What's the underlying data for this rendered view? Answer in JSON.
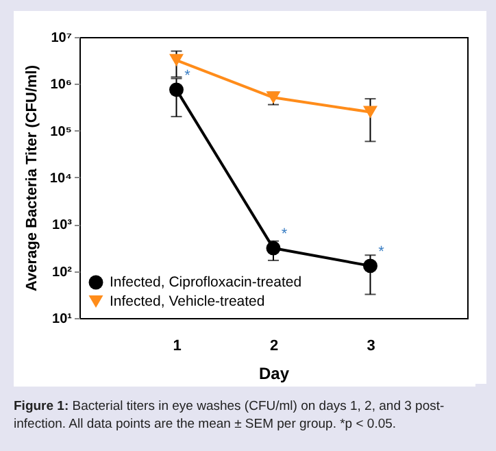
{
  "chart_data": {
    "type": "line",
    "xlabel": "Day",
    "ylabel": "Average Bacteria Titer (CFU/ml)",
    "x": [
      1,
      2,
      3
    ],
    "xlim": [
      0,
      4
    ],
    "xticks": [
      1,
      2,
      3
    ],
    "ylim": [
      10,
      10000000
    ],
    "log": true,
    "yticks": [
      {
        "value": 10,
        "label": "10¹"
      },
      {
        "value": 100,
        "label": "10²"
      },
      {
        "value": 1000,
        "label": "10³"
      },
      {
        "value": 10000,
        "label": "10⁴"
      },
      {
        "value": 100000,
        "label": "10⁵"
      },
      {
        "value": 1000000,
        "label": "10⁶"
      },
      {
        "value": 10000000,
        "label": "10⁷"
      }
    ],
    "series": [
      {
        "name": "Infected, Ciprofloxacin-treated",
        "color": "#000000",
        "marker": "circle",
        "values": [
          750000,
          310,
          130
        ],
        "errors": [
          [
            200000,
            1300000
          ],
          [
            170,
            440
          ],
          [
            32,
            220
          ]
        ]
      },
      {
        "name": "Infected, Vehicle-treated",
        "color": "#ff8c1a",
        "marker": "triangle",
        "values": [
          3200000,
          510000,
          250000
        ],
        "errors": [
          [
            1400000,
            5000000
          ],
          [
            360000,
            660000
          ],
          [
            59000,
            480000
          ]
        ]
      }
    ],
    "legend": "bottom left",
    "grid": false,
    "annotations": [
      {
        "text": "*",
        "x": 1,
        "y": 750000
      },
      {
        "text": "*",
        "x": 2,
        "y": 310
      },
      {
        "text": "*",
        "x": 3,
        "y": 130
      },
      "Figure 1: Bacterial titers in eye washes (CFU/ml) on days 1, 2, and 3 post-infection. All data points are the mean ± SEM per group. *p < 0.05."
    ]
  }
}
